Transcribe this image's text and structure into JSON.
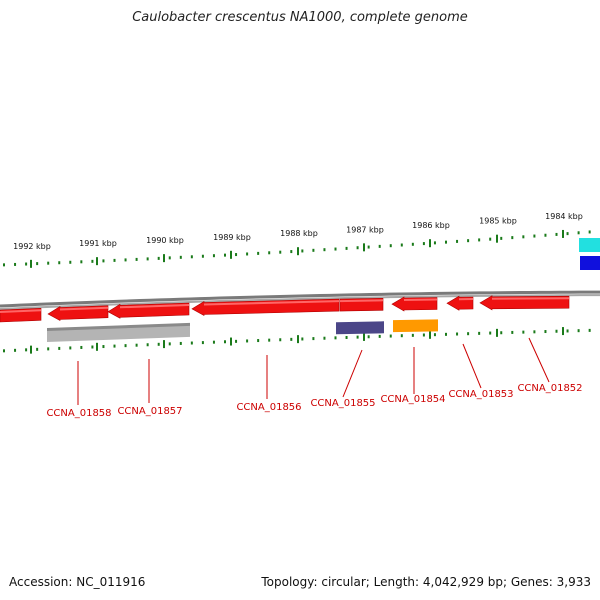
{
  "title": "Caulobacter crescentus NA1000, complete genome",
  "footer": {
    "accession": "Accession: NC_011916",
    "summary": "Topology: circular; Length: 4,042,929 bp; Genes: 3,933"
  },
  "colors": {
    "gene_label": "#cc0000",
    "leader_line": "#cc0000",
    "ticks": "#1a7a1a",
    "backbone": "#7a7a7a",
    "cds": "#ee1111",
    "grey_feature": "#b4b4b4",
    "purple_feature": "#4b4688",
    "orange_feature": "#ff9900",
    "cyan_feature": "#22e0e0",
    "blue_feature": "#1010dd"
  },
  "scale_labels": [
    "1992 kbp",
    "1991 kbp",
    "1990 kbp",
    "1989 kbp",
    "1988 kbp",
    "1987 kbp",
    "1986 kbp",
    "1985 kbp",
    "1984 kbp"
  ],
  "genes": [
    "CCNA_01858",
    "CCNA_01857",
    "CCNA_01856",
    "CCNA_01855",
    "CCNA_01854",
    "CCNA_01853",
    "CCNA_01852"
  ]
}
